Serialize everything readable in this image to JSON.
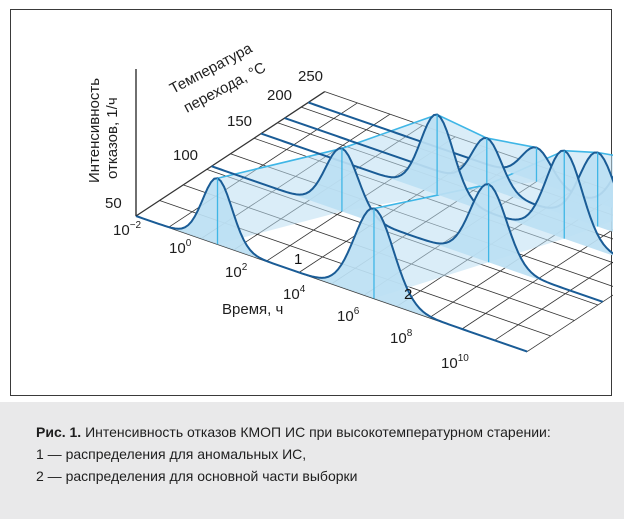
{
  "figure": {
    "ylabel_line1": "Интенсивность",
    "ylabel_line2": "отказов, 1/ч",
    "depth_label_line1": "Температура",
    "depth_label_line2": "перехода, °C",
    "temperature_ticks": [
      "250",
      "200",
      "150",
      "100",
      "50"
    ],
    "time_label": "Время, ч",
    "time_tick_base": "10",
    "time_tick_exponents": [
      "−2",
      "0",
      "2",
      "4",
      "6",
      "8",
      "10"
    ],
    "peak_labels": [
      "1",
      "2"
    ],
    "colors": {
      "fill": "#bcdff3",
      "stroke": "#1a5c96",
      "connector": "#3fb6e6",
      "grid": "#333333"
    }
  },
  "caption": {
    "prefix": "Рис. 1.",
    "title": "Интенсивность отказов КМОП ИС при высокотемпературном старении:",
    "item1": "1 — распределения для аномальных ИС,",
    "item2": "2 — распределения для основной части выборки"
  }
}
